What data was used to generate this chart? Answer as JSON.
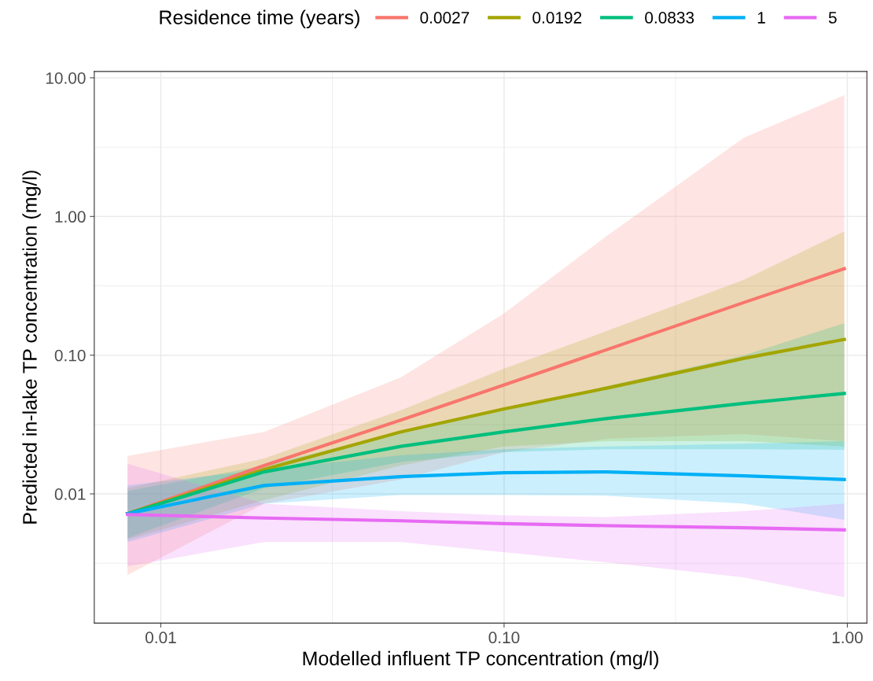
{
  "chart_data": {
    "type": "line",
    "xlabel": "Modelled influent TP concentration (mg/l)",
    "ylabel": "Predicted in-lake TP concentration (mg/l)",
    "legend_title": "Residence time (years)",
    "legend": "top",
    "grid": true,
    "log": "xy",
    "line_style": "solid",
    "marker": "none",
    "xlim": [
      0.0064,
      1.14
    ],
    "ylim": [
      0.00117,
      11.1
    ],
    "xticks": [
      {
        "value": 0.01,
        "label": "0.01"
      },
      {
        "value": 0.0316,
        "label": null
      },
      {
        "value": 0.1,
        "label": "0.10"
      },
      {
        "value": 0.316,
        "label": null
      },
      {
        "value": 1,
        "label": "1.00"
      }
    ],
    "yticks": [
      {
        "value": 0.00316,
        "label": null
      },
      {
        "value": 0.01,
        "label": "0.01"
      },
      {
        "value": 0.0316,
        "label": null
      },
      {
        "value": 0.1,
        "label": "0.10"
      },
      {
        "value": 0.316,
        "label": null
      },
      {
        "value": 1,
        "label": "1.00"
      },
      {
        "value": 3.16,
        "label": null
      },
      {
        "value": 10,
        "label": "10.00"
      }
    ],
    "x": [
      0.008,
      0.02,
      0.05,
      0.1,
      0.2,
      0.5,
      0.98
    ],
    "series": [
      {
        "name": "0.0027",
        "color": "#f8766d",
        "values": [
          0.0072,
          0.016,
          0.034,
          0.061,
          0.11,
          0.24,
          0.42
        ],
        "lower": [
          0.0026,
          0.0085,
          0.0127,
          0.02,
          0.025,
          0.027,
          0.024
        ],
        "upper": [
          0.0188,
          0.028,
          0.069,
          0.2,
          0.73,
          3.7,
          7.5
        ]
      },
      {
        "name": "0.0192",
        "color": "#a3a500",
        "values": [
          0.0072,
          0.015,
          0.028,
          0.041,
          0.058,
          0.095,
          0.13
        ],
        "lower": [
          0.0047,
          0.009,
          0.016,
          0.022,
          0.024,
          0.024,
          0.022
        ],
        "upper": [
          0.011,
          0.018,
          0.04,
          0.08,
          0.15,
          0.35,
          0.78
        ]
      },
      {
        "name": "0.0833",
        "color": "#00bf7d",
        "values": [
          0.0072,
          0.0144,
          0.022,
          0.028,
          0.035,
          0.045,
          0.053
        ],
        "lower": [
          0.0048,
          0.011,
          0.017,
          0.02,
          0.021,
          0.021,
          0.0208
        ],
        "upper": [
          0.0105,
          0.016,
          0.028,
          0.04,
          0.06,
          0.1,
          0.17
        ]
      },
      {
        "name": "1",
        "color": "#00b0f6",
        "values": [
          0.0072,
          0.0115,
          0.0133,
          0.0142,
          0.0144,
          0.0135,
          0.0127
        ],
        "lower": [
          0.0045,
          0.0085,
          0.0098,
          0.0098,
          0.0097,
          0.0085,
          0.0065
        ],
        "upper": [
          0.0115,
          0.015,
          0.019,
          0.021,
          0.022,
          0.023,
          0.024
        ]
      },
      {
        "name": "5",
        "color": "#e76bf3",
        "values": [
          0.0071,
          0.0067,
          0.0064,
          0.0061,
          0.0059,
          0.0057,
          0.0055
        ],
        "lower": [
          0.003,
          0.0045,
          0.0045,
          0.0038,
          0.0032,
          0.0025,
          0.0018
        ],
        "upper": [
          0.0165,
          0.0085,
          0.0075,
          0.007,
          0.0068,
          0.0075,
          0.0085
        ]
      }
    ]
  }
}
